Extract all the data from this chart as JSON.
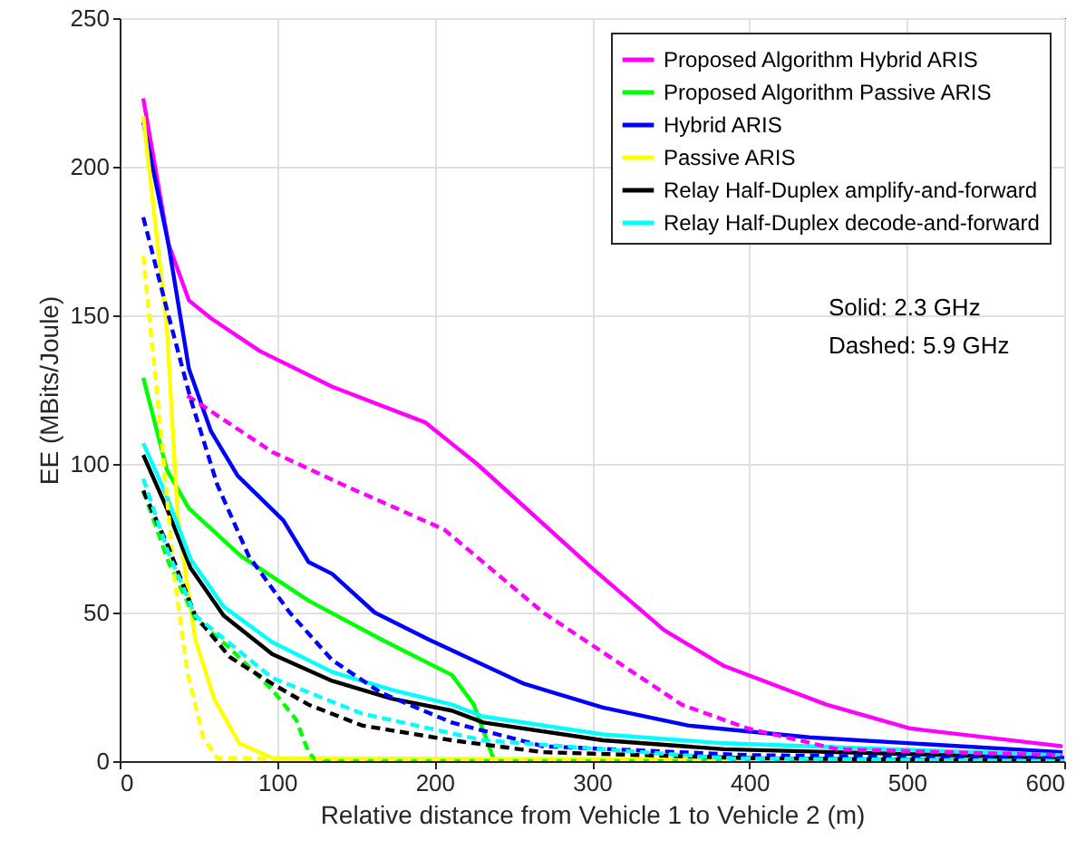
{
  "chart_data": {
    "type": "line",
    "xlabel": "Relative distance from Vehicle 1 to Vehicle 2 (m)",
    "ylabel": "EE (MBits/Joule)",
    "xlim": [
      0,
      600
    ],
    "xticks": [
      0,
      100,
      200,
      300,
      400,
      500,
      600
    ],
    "ylim": [
      0,
      250
    ],
    "yticks": [
      0,
      50,
      100,
      150,
      200,
      250
    ],
    "grid": true,
    "legend": "top right",
    "marker": "none",
    "annotations": [
      "Solid: 2.3 GHz",
      "Dashed: 5.9 GHz"
    ],
    "series": [
      {
        "name": "Proposed Algorithm Hybrid ARIS",
        "color": "#ff00ff",
        "line_style": "solid",
        "x": [
          15,
          31,
          44,
          58,
          89,
          135,
          194,
          227,
          300,
          346,
          384,
          449,
          502,
          599
        ],
        "values": [
          223,
          174,
          155,
          149,
          138,
          126,
          114,
          100,
          65,
          44,
          32,
          19,
          11,
          5
        ]
      },
      {
        "name": "Proposed Algorithm Passive ARIS",
        "color": "#00ff00",
        "line_style": "solid",
        "x": [
          15,
          30,
          44,
          77,
          120,
          166,
          211,
          225,
          238,
          600
        ],
        "values": [
          129,
          98,
          85,
          69,
          54,
          41,
          29,
          19,
          0,
          0
        ]
      },
      {
        "name": "Hybrid ARIS",
        "color": "#0000ff",
        "line_style": "solid",
        "x": [
          15,
          31,
          44,
          58,
          75,
          104,
          120,
          135,
          162,
          196,
          257,
          307,
          361,
          438,
          599
        ],
        "values": [
          215,
          174,
          132,
          111,
          96,
          81,
          67,
          63,
          50,
          41,
          26,
          18,
          12,
          8,
          3
        ]
      },
      {
        "name": "Passive ARIS",
        "color": "#ffff00",
        "line_style": "solid",
        "x": [
          15,
          30,
          37,
          48,
          60,
          76,
          97,
          600
        ],
        "values": [
          217,
          146,
          81,
          41,
          21,
          6,
          1,
          0
        ]
      },
      {
        "name": "Relay Half-Duplex amplify-and-forward",
        "color": "#000000",
        "line_style": "solid",
        "x": [
          15,
          30,
          45,
          66,
          97,
          135,
          173,
          211,
          231,
          307,
          384,
          600
        ],
        "values": [
          103,
          85,
          65,
          49,
          36,
          27,
          21,
          17,
          13,
          7,
          4,
          1
        ]
      },
      {
        "name": "Relay Half-Duplex decode-and-forward",
        "color": "#00ffff",
        "line_style": "solid",
        "x": [
          15,
          30,
          45,
          66,
          97,
          135,
          173,
          211,
          231,
          307,
          384,
          599
        ],
        "values": [
          107,
          89,
          68,
          52,
          40,
          30,
          24,
          19,
          15,
          9,
          6,
          2
        ]
      },
      {
        "color": "#ff00ff",
        "line_style": "dashed",
        "x": [
          43,
          97,
          146,
          206,
          269,
          357,
          399,
          456,
          599
        ],
        "values": [
          123,
          104,
          92,
          78,
          50,
          19,
          11,
          4,
          2
        ]
      },
      {
        "color": "#00ff00",
        "line_style": "dashed",
        "x": [
          15,
          31,
          48,
          70,
          97,
          112,
          120,
          125,
          600
        ],
        "values": [
          91,
          67,
          48,
          38,
          24,
          14,
          3,
          0,
          0
        ]
      },
      {
        "color": "#0000ff",
        "line_style": "dashed",
        "x": [
          15,
          30,
          45,
          62,
          82,
          108,
          135,
          166,
          211,
          269,
          400,
          600
        ],
        "values": [
          183,
          152,
          122,
          93,
          69,
          50,
          34,
          23,
          13,
          5,
          2,
          1
        ]
      },
      {
        "color": "#ffff00",
        "line_style": "dashed",
        "x": [
          15,
          25,
          35,
          43,
          53,
          62,
          600
        ],
        "values": [
          170,
          117,
          61,
          30,
          8,
          1,
          0
        ]
      },
      {
        "color": "#000000",
        "line_style": "dashed",
        "x": [
          15,
          31,
          48,
          70,
          97,
          120,
          154,
          211,
          269,
          400,
          600
        ],
        "values": [
          91,
          72,
          49,
          35,
          26,
          19,
          12,
          7,
          3,
          1,
          0
        ]
      },
      {
        "color": "#00ffff",
        "line_style": "dashed",
        "x": [
          15,
          31,
          48,
          97,
          154,
          231,
          384,
          600
        ],
        "values": [
          95,
          70,
          49,
          28,
          16,
          7,
          1,
          0
        ]
      }
    ]
  }
}
